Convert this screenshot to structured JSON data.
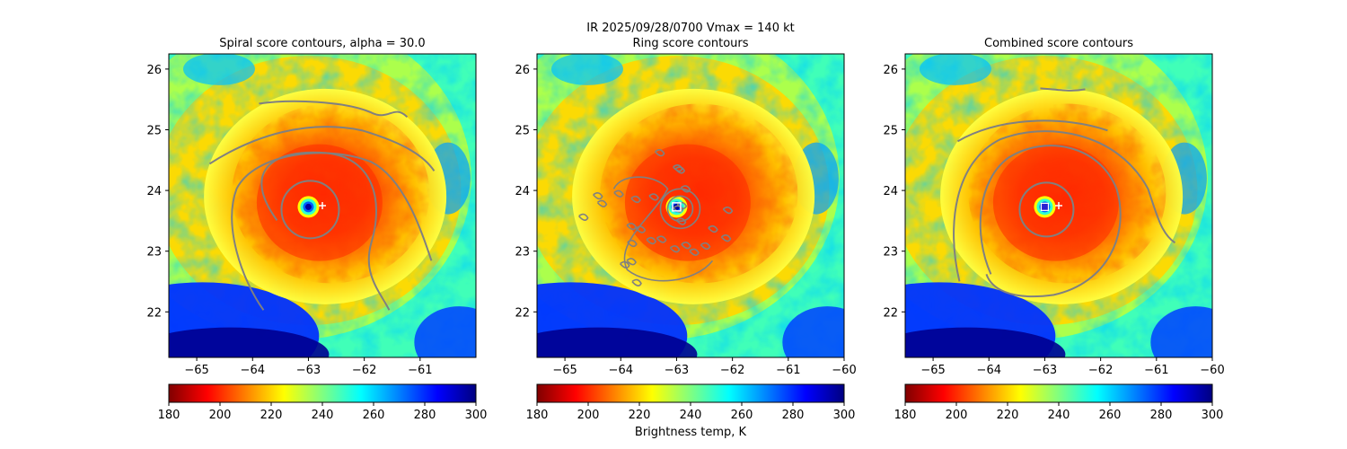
{
  "figure": {
    "suptitle_line": "IR  2025/09/28/0700    Vmax = 140 kt",
    "colorbar_label": "Brightness temp, K"
  },
  "colormap": {
    "name": "jet_r",
    "stops": [
      "#800000",
      "#ff0000",
      "#ff8000",
      "#ffff00",
      "#80ff80",
      "#00ffff",
      "#0080ff",
      "#0000ff",
      "#000080"
    ],
    "marker_color": "#ffffff",
    "contour_color": "#808080",
    "center_fill": "#2a20d0"
  },
  "chart_data": [
    {
      "type": "heatmap",
      "title": "Spiral score contours, alpha = 30.0",
      "xlim": [
        -65.5,
        -60
      ],
      "ylim": [
        21.25,
        26.25
      ],
      "xticks": [
        -65,
        -64,
        -63,
        -62,
        -61
      ],
      "yticks": [
        22,
        23,
        24,
        25,
        26
      ],
      "colorbar_range": [
        180,
        300
      ],
      "colorbar_ticks": [
        180,
        200,
        220,
        240,
        260,
        280,
        300
      ],
      "storm_center": [
        -63.0,
        23.73
      ],
      "marker": {
        "type": "plus",
        "position": [
          -62.75,
          23.75
        ]
      },
      "overlay": "Spiral score contours"
    },
    {
      "type": "heatmap",
      "title": "Ring score contours",
      "xlim": [
        -65.5,
        -60
      ],
      "ylim": [
        21.25,
        26.25
      ],
      "xticks": [
        -65,
        -64,
        -63,
        -62,
        -61,
        -60
      ],
      "yticks": [
        22,
        23,
        24,
        25,
        26
      ],
      "colorbar_range": [
        180,
        300
      ],
      "colorbar_ticks": [
        180,
        200,
        220,
        240,
        260,
        280,
        300
      ],
      "storm_center": [
        -63.0,
        23.73
      ],
      "marker": {
        "type": "square",
        "position": [
          -63.0,
          23.73
        ]
      },
      "overlay": "Ring score contours"
    },
    {
      "type": "heatmap",
      "title": "Combined score contours",
      "xlim": [
        -65.5,
        -60
      ],
      "ylim": [
        21.25,
        26.25
      ],
      "xticks": [
        -65,
        -64,
        -63,
        -62,
        -61,
        -60
      ],
      "yticks": [
        22,
        23,
        24,
        25,
        26
      ],
      "colorbar_range": [
        180,
        300
      ],
      "colorbar_ticks": [
        180,
        200,
        220,
        240,
        260,
        280,
        300
      ],
      "storm_center": [
        -63.0,
        23.73
      ],
      "marker": {
        "type": "plus",
        "position": [
          -62.75,
          23.75
        ]
      },
      "overlay": "Combined score contours"
    }
  ]
}
